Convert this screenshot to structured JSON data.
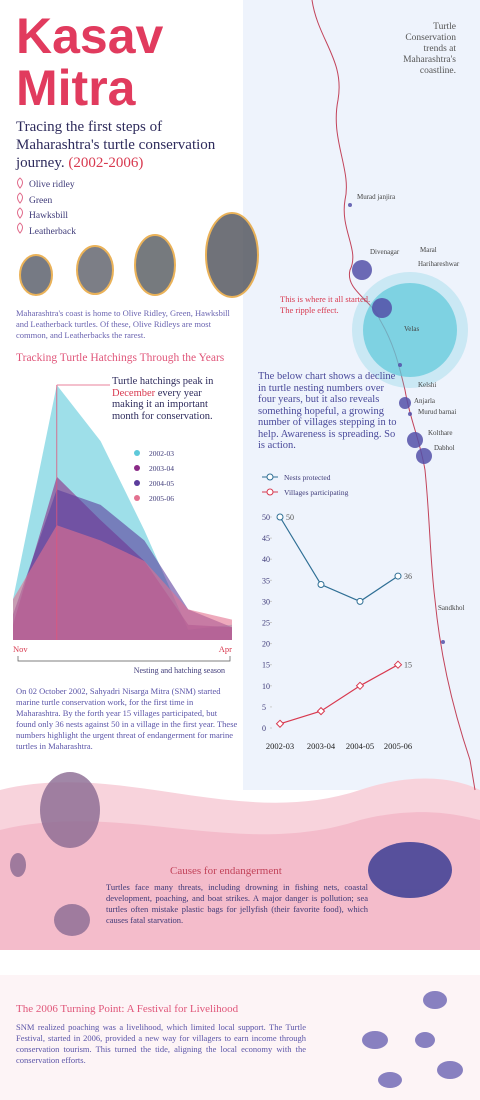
{
  "header": {
    "title_lines": [
      "Kasav",
      "Mitra"
    ],
    "subtitle": "Tracing the first steps of Maharashtra's turtle conservation journey.",
    "years": "(2002-2006)"
  },
  "species": [
    "Olive ridley",
    "Green",
    "Hawksbill",
    "Leatherback"
  ],
  "intro": "Maharashtra's coast is home to Olive Ridley, Green, Hawksbill and Leatherback turtles. Of these, Olive Ridleys are most common, and Leatherbacks the rarest.",
  "map": {
    "caption": "Turtle Conservation trends at Maharashtra's coastline.",
    "places": [
      "Murad janjira",
      "Divenagar",
      "Maral",
      "Harihareshwar",
      "Velas",
      "Kelshi",
      "Anjarla",
      "Murud barnai",
      "Kolthare",
      "Dabhol",
      "Sandkhol"
    ],
    "callout": "This is where it all started. The ripple effect."
  },
  "chart_note": "The below chart shows a decline in turtle nesting numbers over four years, but it also reveals something hopeful, a growing number of villages stepping in to help. Awareness is spreading. So is action.",
  "history": "On 02 October 2002, Sahyadri Nisarga Mitra (SNM) started marine turtle conservation work, for the first time in Maharashtra. By the forth year 15 villages participated, but found only 36 nests against 50 in a village in the first year. These numbers highlight the urgent threat of endangerment for marine turtles in Maharashtra.",
  "causes": {
    "title": "Causes for endangerment",
    "text": "Turtles face many threats, including drowning in fishing nets, coastal development, poaching, and boat strikes. A major danger is pollution; sea turtles often mistake plastic bags for jellyfish (their favorite food), which causes fatal starvation."
  },
  "turning_point": {
    "title": "The 2006 Turning Point: A Festival for Livelihood",
    "text": "SNM realized poaching was a livelihood, which limited local support. The Turtle Festival, started in 2006, provided a new way for villagers to earn income through conservation tourism. This turned the tide, aligning the local economy with the conservation efforts."
  },
  "chart_data": [
    {
      "type": "area",
      "title": "Tracking Turtle Hatchings Through the Years",
      "annotation": [
        "Turtle hatchings peak in",
        "December",
        "every year making it an important month for conservation."
      ],
      "xlabel": "Nesting and hatching season",
      "categories": [
        "Nov",
        null,
        null,
        null,
        null,
        "Apr"
      ],
      "ylim": [
        0,
        100
      ],
      "series": [
        {
          "name": "2002-03",
          "color": "#5ec9da",
          "values": [
            16,
            100,
            78,
            43,
            4,
            6
          ]
        },
        {
          "name": "2003-04",
          "color": "#8a2a86",
          "values": [
            6,
            64,
            47,
            31,
            6,
            5
          ]
        },
        {
          "name": "2004-05",
          "color": "#5b3d9c",
          "values": [
            10,
            59,
            53,
            39,
            12,
            5
          ]
        },
        {
          "name": "2005-06",
          "color": "#e3718f",
          "values": [
            16,
            45,
            39,
            31,
            12,
            8
          ]
        }
      ]
    },
    {
      "type": "line",
      "categories": [
        "2002-03",
        "2003-04",
        "2004-05",
        "2005-06"
      ],
      "ylim": [
        0,
        50
      ],
      "yticks": [
        0,
        5,
        10,
        15,
        20,
        25,
        30,
        35,
        40,
        45,
        50
      ],
      "series": [
        {
          "name": "Nests protected",
          "color": "#2f6f95",
          "marker": "circle",
          "values": [
            50,
            34,
            30,
            36
          ],
          "value_labels": [
            "50",
            null,
            null,
            "36"
          ]
        },
        {
          "name": "Villages participating",
          "color": "#d8394f",
          "marker": "diamond",
          "values": [
            1,
            4,
            10,
            15
          ],
          "value_labels": [
            null,
            null,
            null,
            "15"
          ]
        }
      ]
    }
  ]
}
